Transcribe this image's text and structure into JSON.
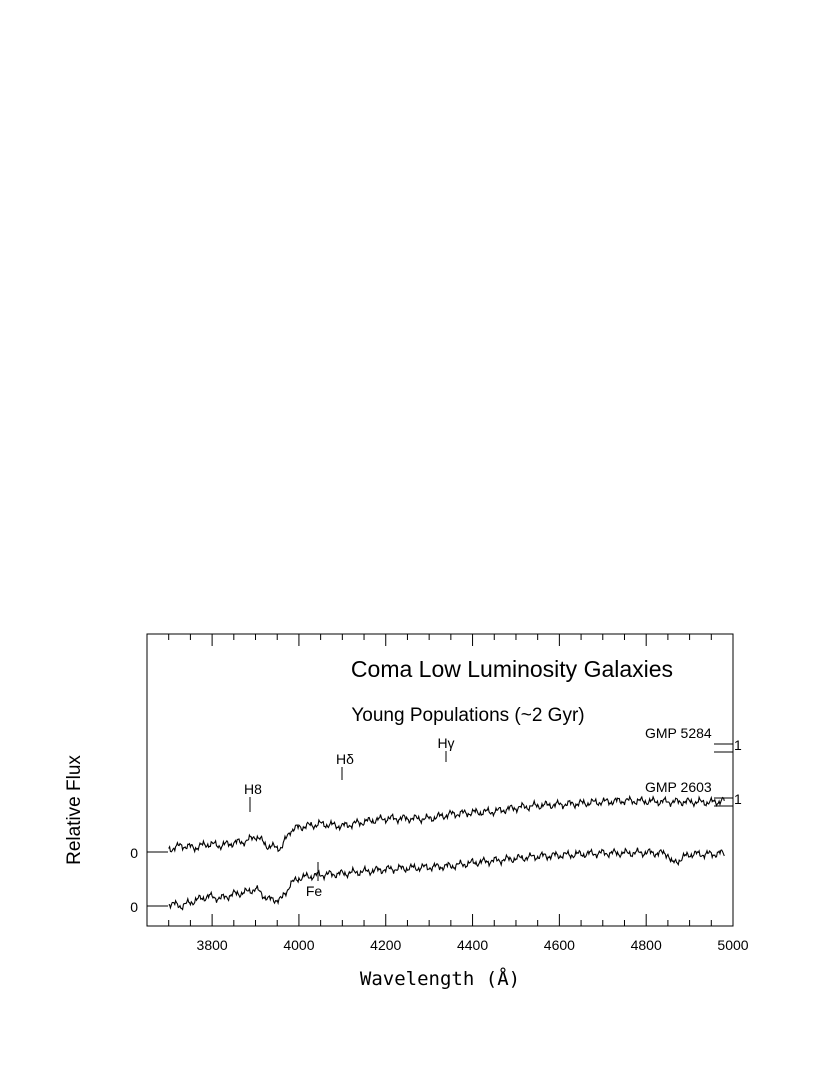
{
  "chart_data": {
    "type": "line",
    "title": "Coma Low Luminosity Galaxies",
    "subtitle": "Young Populations (~2 Gyr)",
    "xlabel": "Wavelength (Å)",
    "ylabel": "Relative Flux",
    "xlim": [
      3650,
      5000
    ],
    "x_ticks": [
      3800,
      4000,
      4200,
      4400,
      4600,
      4800,
      5000
    ],
    "y_zero_labels": [
      "0",
      "0"
    ],
    "right_scale_labels": [
      "1",
      "1"
    ],
    "grid": false,
    "series": [
      {
        "name": "GMP 5284",
        "color": "#000000",
        "offset_level": 2.0,
        "x": [
          3700,
          3730,
          3760,
          3790,
          3820,
          3850,
          3880,
          3900,
          3930,
          3960,
          3980,
          4000,
          4050,
          4100,
          4150,
          4200,
          4250,
          4300,
          4350,
          4400,
          4450,
          4500,
          4550,
          4600,
          4650,
          4700,
          4750,
          4800,
          4850,
          4900,
          4950,
          4980
        ],
        "y": [
          1.05,
          1.12,
          1.08,
          1.15,
          1.12,
          1.17,
          1.2,
          1.3,
          1.1,
          1.08,
          1.4,
          1.46,
          1.52,
          1.48,
          1.56,
          1.62,
          1.62,
          1.62,
          1.7,
          1.73,
          1.75,
          1.82,
          1.86,
          1.88,
          1.9,
          1.93,
          1.95,
          1.94,
          1.93,
          1.93,
          1.92,
          1.95
        ]
      },
      {
        "name": "GMP 2603",
        "color": "#000000",
        "offset_level": 1.0,
        "x": [
          3700,
          3730,
          3760,
          3790,
          3820,
          3850,
          3880,
          3900,
          3930,
          3960,
          3980,
          4000,
          4050,
          4100,
          4150,
          4200,
          4250,
          4300,
          4350,
          4400,
          4450,
          4500,
          4550,
          4600,
          4650,
          4700,
          4750,
          4800,
          4850,
          4860,
          4900,
          4950,
          4980
        ],
        "y": [
          0.05,
          0.0,
          0.1,
          0.18,
          0.14,
          0.22,
          0.26,
          0.32,
          0.12,
          0.12,
          0.4,
          0.52,
          0.58,
          0.6,
          0.64,
          0.68,
          0.7,
          0.72,
          0.74,
          0.8,
          0.84,
          0.88,
          0.92,
          0.94,
          0.96,
          0.98,
          0.98,
          0.99,
          0.97,
          0.78,
          0.96,
          0.96,
          0.98
        ]
      }
    ],
    "annotations": [
      {
        "text": "H8",
        "x": 3889
      },
      {
        "text": "Hδ",
        "x": 4102
      },
      {
        "text": "Hγ",
        "x": 4340
      },
      {
        "text": "Fe",
        "x": 4045
      }
    ]
  }
}
